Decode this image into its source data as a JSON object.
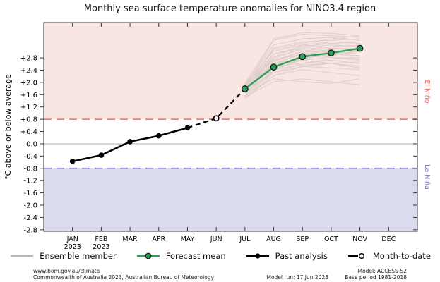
{
  "title": "Monthly sea surface temperature anomalies for NINO3.4 region",
  "footer": {
    "site": "www.bom.gov.au/climate",
    "copyright": "Commonwealth of Australia 2023, Australian Bureau of Meteorology",
    "model_run": "Model run: 17 Jun 2023",
    "model": "Model: ACCESS-S2",
    "base_period": "Base period 1981-2018"
  },
  "chart_data": {
    "type": "line",
    "title": "Monthly sea surface temperature anomalies for NINO3.4 region",
    "xlabel": "",
    "ylabel": "°C above or below average",
    "ylim": [
      -2.85,
      3.95
    ],
    "grid": false,
    "legend_position": "bottom",
    "ytick_values": [
      2.8,
      2.4,
      2.0,
      1.6,
      1.2,
      0.8,
      0.4,
      0.0,
      -0.4,
      -0.8,
      -1.2,
      -1.6,
      -2.0,
      -2.4,
      -2.8
    ],
    "ytick_labels": [
      "+2.8",
      "+2.4",
      "+2.0",
      "+1.6",
      "+1.2",
      "+0.8",
      "+0.4",
      "0.0",
      "-0.4",
      "-0.8",
      "-1.2",
      "-1.6",
      "-2.0",
      "-2.4",
      "-2.8"
    ],
    "months": [
      "JAN",
      "FEB",
      "MAR",
      "APR",
      "MAY",
      "JUN",
      "JUL",
      "AUG",
      "SEP",
      "OCT",
      "NOV",
      "DEC"
    ],
    "month_sublabels": [
      "2023",
      "2023",
      "",
      "",
      "",
      "",
      "",
      "",
      "",
      "",
      "",
      ""
    ],
    "regions": {
      "el_nino": {
        "label": "El Niño",
        "threshold": 0.8,
        "fill": "#f9e5e2",
        "line_color": "#f28080",
        "label_color": "#e06e66"
      },
      "la_nina": {
        "label": "La Niña",
        "threshold": -0.8,
        "fill": "#dbdbf0",
        "line_color": "#7f7fc8",
        "label_color": "#7878bb"
      }
    },
    "colors": {
      "past": "#000000",
      "forecast": "#2b9e58",
      "ensemble": "#8c8c8c",
      "month_to_date_fill": "#ffffff",
      "zero_line": "#b0b0b0",
      "frame": "#333333"
    },
    "series": {
      "past_analysis": {
        "label": "Past analysis",
        "start_index": 0,
        "values": [
          -0.57,
          -0.37,
          0.07,
          0.26,
          0.52
        ]
      },
      "month_to_date": {
        "label": "Month-to-date",
        "index": 5,
        "value": 0.83
      },
      "forecast_mean": {
        "label": "Forecast mean",
        "start_index": 6,
        "values": [
          1.79,
          2.5,
          2.84,
          2.96,
          3.11
        ]
      },
      "ensemble": {
        "label": "Ensemble member",
        "start_index": 6,
        "members": [
          [
            1.52,
            2.02,
            2.12,
            2.02,
            1.92
          ],
          [
            1.62,
            2.12,
            2.02,
            1.97,
            2.12
          ],
          [
            1.46,
            2.22,
            2.42,
            2.32,
            2.22
          ],
          [
            1.72,
            2.32,
            2.52,
            2.47,
            2.42
          ],
          [
            1.82,
            2.42,
            2.57,
            2.62,
            2.52
          ],
          [
            1.92,
            2.52,
            2.62,
            2.72,
            2.62
          ],
          [
            1.76,
            2.47,
            2.72,
            2.82,
            2.77
          ],
          [
            1.86,
            2.62,
            2.77,
            2.92,
            2.87
          ],
          [
            1.62,
            2.37,
            2.82,
            2.87,
            3.02
          ],
          [
            1.96,
            2.72,
            2.92,
            3.02,
            2.92
          ],
          [
            1.82,
            2.57,
            2.97,
            3.07,
            3.12
          ],
          [
            1.72,
            2.67,
            3.02,
            3.12,
            3.07
          ],
          [
            1.92,
            2.82,
            3.07,
            3.17,
            3.22
          ],
          [
            1.86,
            2.77,
            3.12,
            3.22,
            3.17
          ],
          [
            1.76,
            2.92,
            3.17,
            3.27,
            3.32
          ],
          [
            1.96,
            3.02,
            3.22,
            3.32,
            3.27
          ],
          [
            1.82,
            3.12,
            3.32,
            3.37,
            3.42
          ],
          [
            1.92,
            3.22,
            3.42,
            3.47,
            3.37
          ],
          [
            1.86,
            3.37,
            3.57,
            3.52,
            3.47
          ],
          [
            1.96,
            3.42,
            3.62,
            3.6,
            3.52
          ],
          [
            1.66,
            2.52,
            2.87,
            2.97,
            3.07
          ],
          [
            1.56,
            2.32,
            2.62,
            2.77,
            2.82
          ],
          [
            1.72,
            2.62,
            2.92,
            2.82,
            2.72
          ],
          [
            1.62,
            2.42,
            2.77,
            2.92,
            3.02
          ],
          [
            1.82,
            2.72,
            3.02,
            2.97,
            3.12
          ],
          [
            1.92,
            2.92,
            3.12,
            3.32,
            3.32
          ],
          [
            1.52,
            2.22,
            2.52,
            2.62,
            2.67
          ],
          [
            1.76,
            2.82,
            3.22,
            3.12,
            3.02
          ],
          [
            1.66,
            2.57,
            2.72,
            2.62,
            2.47
          ],
          [
            1.86,
            3.07,
            3.27,
            3.42,
            3.52
          ]
        ]
      }
    },
    "legend": {
      "items": [
        {
          "label": "Ensemble member"
        },
        {
          "label": "Forecast mean"
        },
        {
          "label": "Past analysis"
        },
        {
          "label": "Month-to-date"
        }
      ]
    }
  }
}
